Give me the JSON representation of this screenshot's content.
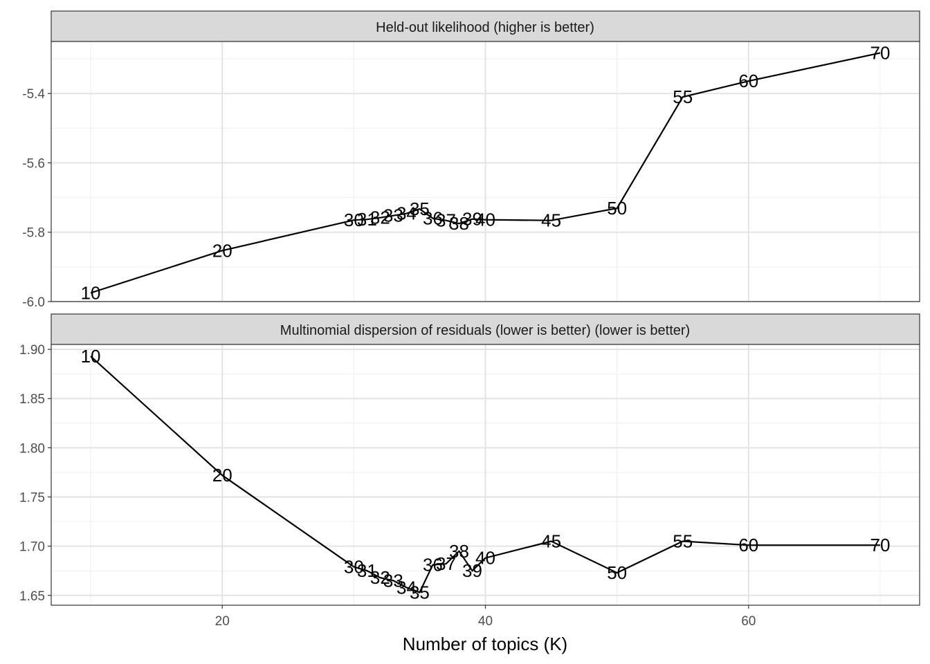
{
  "chart_data": {
    "type": "line",
    "xlabel": "Number of topics (K)",
    "x_ticks": [
      20,
      40,
      60
    ],
    "xlim": [
      7,
      73
    ],
    "grid": true,
    "panels": [
      {
        "title": "Held-out likelihood (higher is better)",
        "ylim": [
          -6.0,
          -5.25
        ],
        "y_ticks": [
          -6.0,
          -5.8,
          -5.6,
          -5.4
        ],
        "y_tick_labels": [
          "-6.0",
          "-5.8",
          "-5.6",
          "-5.4"
        ],
        "points": [
          {
            "k": 10,
            "value": -5.975
          },
          {
            "k": 20,
            "value": -5.853
          },
          {
            "k": 30,
            "value": -5.765
          },
          {
            "k": 31,
            "value": -5.763
          },
          {
            "k": 32,
            "value": -5.758
          },
          {
            "k": 33,
            "value": -5.752
          },
          {
            "k": 34,
            "value": -5.746
          },
          {
            "k": 35,
            "value": -5.733
          },
          {
            "k": 36,
            "value": -5.76
          },
          {
            "k": 37,
            "value": -5.766
          },
          {
            "k": 38,
            "value": -5.775
          },
          {
            "k": 39,
            "value": -5.762
          },
          {
            "k": 40,
            "value": -5.764
          },
          {
            "k": 45,
            "value": -5.766
          },
          {
            "k": 50,
            "value": -5.731
          },
          {
            "k": 55,
            "value": -5.41
          },
          {
            "k": 60,
            "value": -5.364
          },
          {
            "k": 70,
            "value": -5.283
          }
        ]
      },
      {
        "title": "Multinomial dispersion of residuals (lower is better) (lower is better)",
        "ylim": [
          1.64,
          1.905
        ],
        "y_ticks": [
          1.65,
          1.7,
          1.75,
          1.8,
          1.85,
          1.9
        ],
        "y_tick_labels": [
          "1.65",
          "1.70",
          "1.75",
          "1.80",
          "1.85",
          "1.90"
        ],
        "points": [
          {
            "k": 10,
            "value": 1.893
          },
          {
            "k": 20,
            "value": 1.772
          },
          {
            "k": 30,
            "value": 1.679
          },
          {
            "k": 31,
            "value": 1.675
          },
          {
            "k": 32,
            "value": 1.668
          },
          {
            "k": 33,
            "value": 1.665
          },
          {
            "k": 34,
            "value": 1.658
          },
          {
            "k": 35,
            "value": 1.653
          },
          {
            "k": 36,
            "value": 1.681
          },
          {
            "k": 37,
            "value": 1.682
          },
          {
            "k": 38,
            "value": 1.695
          },
          {
            "k": 39,
            "value": 1.675
          },
          {
            "k": 40,
            "value": 1.688
          },
          {
            "k": 45,
            "value": 1.705
          },
          {
            "k": 50,
            "value": 1.673
          },
          {
            "k": 55,
            "value": 1.705
          },
          {
            "k": 60,
            "value": 1.701
          },
          {
            "k": 70,
            "value": 1.701
          }
        ]
      }
    ]
  }
}
